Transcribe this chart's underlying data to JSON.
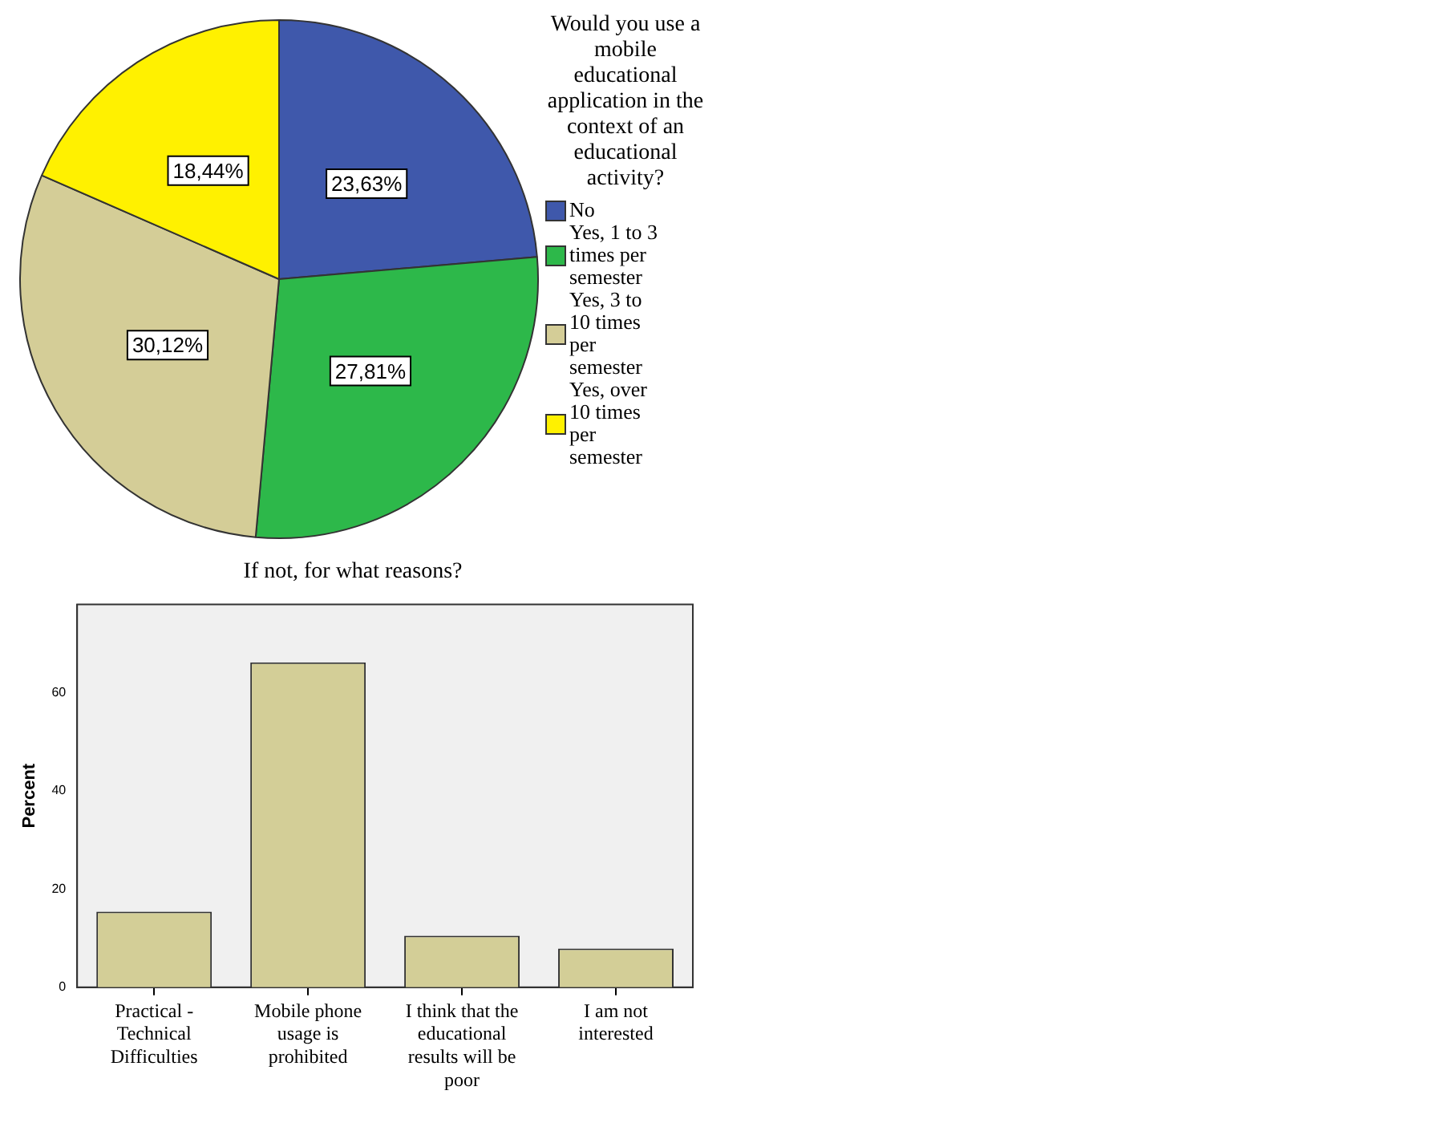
{
  "chart_data": [
    {
      "type": "pie",
      "legend_title": "Would you use a mobile educational application in the context of an educational activity?",
      "categories": [
        "No",
        "Yes, 1 to 3 times per semester",
        "Yes, 3 to 10 times per semester",
        "Yes, over 10 times per semester"
      ],
      "values": [
        23.63,
        27.81,
        30.12,
        18.44
      ],
      "colors": [
        "#3f58ab",
        "#2db84a",
        "#d4cd97",
        "#fff100"
      ],
      "value_labels": [
        "23,63%",
        "27,81%",
        "30,12%",
        "18,44%"
      ],
      "legend": "right"
    },
    {
      "type": "bar",
      "title": "If not, for what reasons?",
      "ylabel": "Percent",
      "categories": [
        "Practical - Technical Difficulties",
        "Mobile phone usage is prohibited",
        "I think that the educational results will be poor",
        "I am not interested"
      ],
      "values": [
        15.4,
        66.2,
        10.5,
        7.9
      ],
      "color": "#d3ce97",
      "ylim": [
        0,
        78
      ],
      "yticks": [
        0,
        20,
        40,
        60
      ],
      "grid": false,
      "legend": false
    }
  ]
}
